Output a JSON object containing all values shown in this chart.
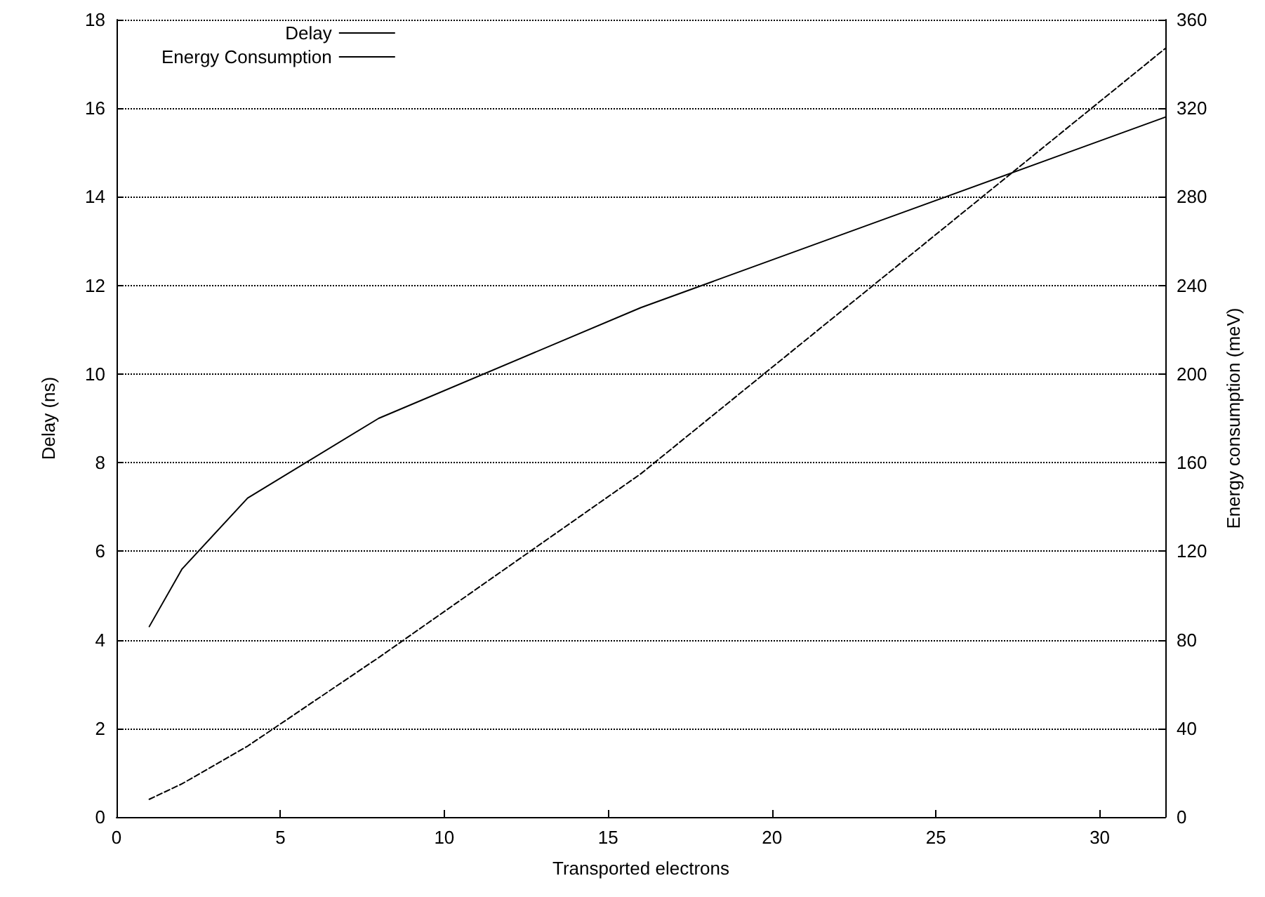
{
  "chart_data": {
    "type": "line",
    "xlabel": "Transported electrons",
    "ylabel": "Delay (ns)",
    "y2label": "Energy consumption (meV)",
    "x": [
      1,
      2,
      4,
      8,
      16,
      32
    ],
    "series": [
      {
        "name": "Delay",
        "color": "#000000",
        "line_style": "solid",
        "values": [
          4.3,
          5.6,
          7.2,
          9.0,
          11.5,
          15.8
        ]
      },
      {
        "name": "Energy Consumption",
        "color": "#000000",
        "line_style": "dashed",
        "axis": "y2",
        "values": [
          8,
          15,
          32,
          72,
          155,
          347
        ]
      }
    ],
    "xlim": [
      0,
      32
    ],
    "xticks": [
      0,
      5,
      10,
      15,
      20,
      25,
      30
    ],
    "ylim": [
      0,
      18
    ],
    "yticks": [
      0,
      2,
      4,
      6,
      8,
      10,
      12,
      14,
      16,
      18
    ],
    "y2lim": [
      0,
      360
    ],
    "y2ticks": [
      0,
      40,
      80,
      120,
      160,
      200,
      240,
      280,
      320,
      360
    ],
    "grid": "y",
    "legend": "top left",
    "marker": "none"
  }
}
